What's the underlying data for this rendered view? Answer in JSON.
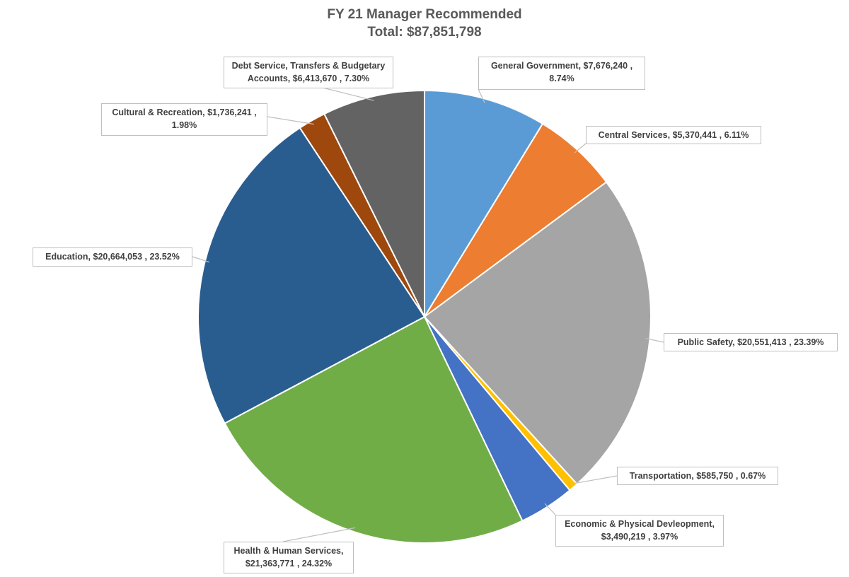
{
  "chart_data": {
    "type": "pie",
    "title": "FY 21 Manager Recommended",
    "subtitle": "Total: $87,851,798",
    "slices": [
      {
        "name": "General Government",
        "value": 7676240,
        "value_label": "$7,676,240",
        "percent": "8.74%",
        "color": "#5b9bd5"
      },
      {
        "name": "Central Services",
        "value": 5370441,
        "value_label": "$5,370,441",
        "percent": "6.11%",
        "color": "#ed7d31"
      },
      {
        "name": "Public Safety",
        "value": 20551413,
        "value_label": "$20,551,413",
        "percent": "23.39%",
        "color": "#a5a5a5"
      },
      {
        "name": "Transportation",
        "value": 585750,
        "value_label": "$585,750",
        "percent": "0.67%",
        "color": "#ffc000"
      },
      {
        "name": "Economic & Physical Devleopment",
        "value": 3490219,
        "value_label": "$3,490,219",
        "percent": "3.97%",
        "color": "#4472c4"
      },
      {
        "name": "Health & Human Services",
        "value": 21363771,
        "value_label": "$21,363,771",
        "percent": "24.32%",
        "color": "#70ad47"
      },
      {
        "name": "Education",
        "value": 20664053,
        "value_label": "$20,664,053",
        "percent": "23.52%",
        "color": "#2a5d8f"
      },
      {
        "name": "Cultural & Recreation",
        "value": 1736241,
        "value_label": "$1,736,241",
        "percent": "1.98%",
        "color": "#9e480e"
      },
      {
        "name": "Debt Service, Transfers & Budgetary Accounts",
        "value": 6413670,
        "value_label": "$6,413,670",
        "percent": "7.30%",
        "color": "#636363"
      }
    ]
  }
}
